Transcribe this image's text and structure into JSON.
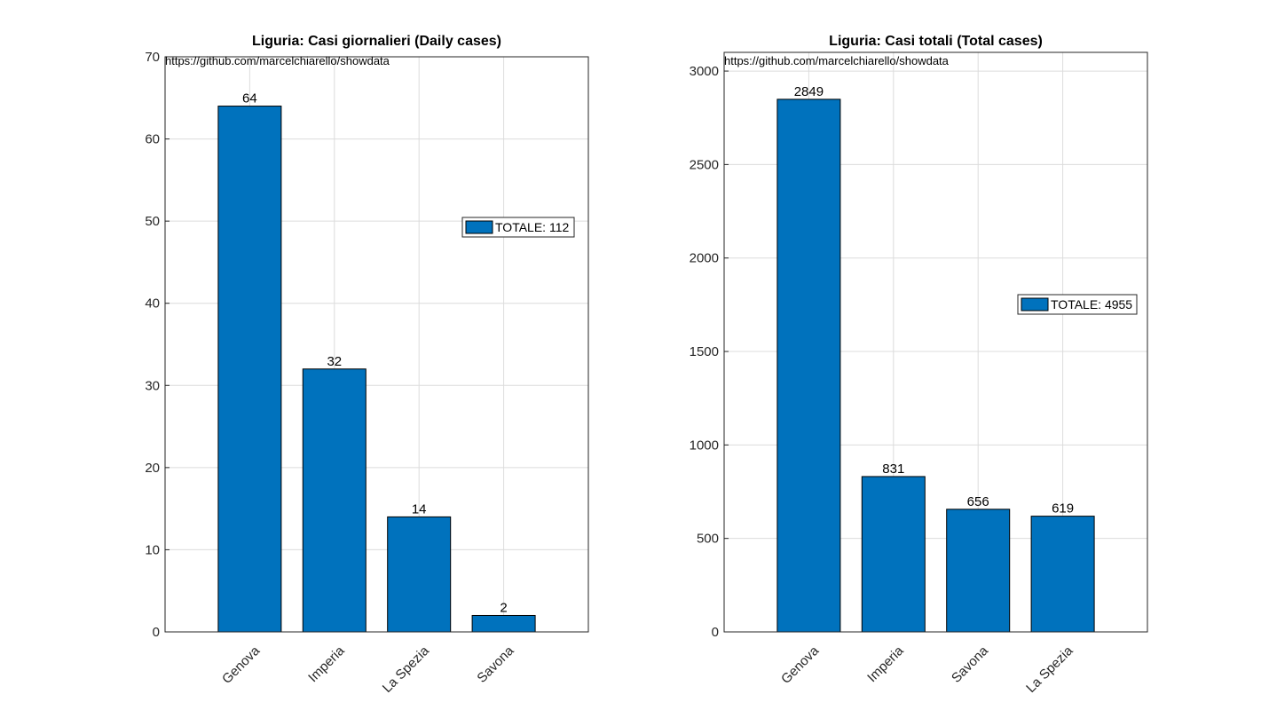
{
  "chart_data": [
    {
      "type": "bar",
      "title": "Liguria: Casi giornalieri (Daily cases)",
      "annotation": "https://github.com/marcelchiarello/showdata",
      "categories": [
        "Genova",
        "Imperia",
        "La Spezia",
        "Savona"
      ],
      "values": [
        64,
        32,
        14,
        2
      ],
      "legend": "TOTALE: 112",
      "legend_position": "right",
      "ylim": [
        0,
        70
      ],
      "yticks": [
        0,
        10,
        20,
        30,
        40,
        50,
        60,
        70
      ],
      "grid": true,
      "color": "#0072BD"
    },
    {
      "type": "bar",
      "title": "Liguria: Casi totali (Total cases)",
      "annotation": "https://github.com/marcelchiarello/showdata",
      "categories": [
        "Genova",
        "Imperia",
        "Savona",
        "La Spezia"
      ],
      "values": [
        2849,
        831,
        656,
        619
      ],
      "legend": "TOTALE: 4955",
      "legend_position": "right",
      "ylim": [
        0,
        3100
      ],
      "yticks": [
        0,
        500,
        1000,
        1500,
        2000,
        2500,
        3000
      ],
      "grid": true,
      "color": "#0072BD"
    }
  ]
}
